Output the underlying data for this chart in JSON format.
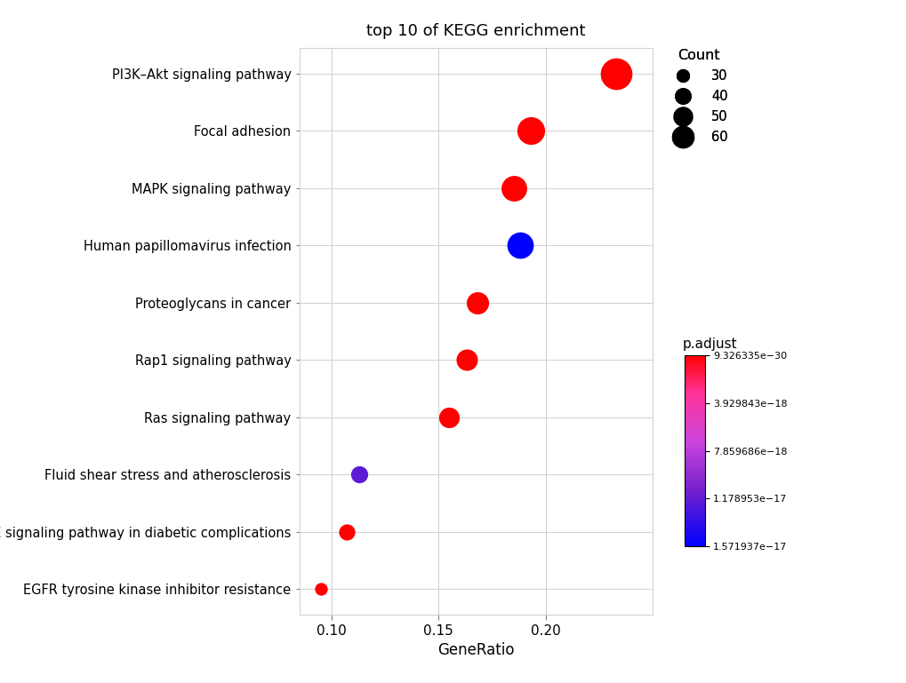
{
  "title": "top 10 of KEGG enrichment",
  "xlabel": "GeneRatio",
  "pathways": [
    "PI3K–Akt signaling pathway",
    "Focal adhesion",
    "MAPK signaling pathway",
    "Human papillomavirus infection",
    "Proteoglycans in cancer",
    "Rap1 signaling pathway",
    "Ras signaling pathway",
    "Fluid shear stress and atherosclerosis",
    "AGE–RAGE signaling pathway in diabetic complications",
    "EGFR tyrosine kinase inhibitor resistance"
  ],
  "gene_ratio": [
    0.233,
    0.193,
    0.185,
    0.188,
    0.168,
    0.163,
    0.155,
    0.113,
    0.107,
    0.095
  ],
  "counts": [
    65,
    55,
    50,
    52,
    42,
    40,
    38,
    30,
    28,
    20
  ],
  "p_adjust": [
    9.326335e-30,
    3.5e-29,
    2e-28,
    1.571937e-17,
    1.5e-28,
    8e-29,
    3e-28,
    1.2e-17,
    5e-29,
    3e-29
  ],
  "p_adjust_min": 9.326335e-30,
  "p_adjust_max": 1.571937e-17,
  "colorbar_ticks": [
    9.326335e-30,
    3.929843e-18,
    7.859686e-18,
    1.178953e-17,
    1.571937e-17
  ],
  "colorbar_ticklabels": [
    "9.326335e−30",
    "3.929843e−18",
    "7.859686e−18",
    "1.178953e−17",
    "1.571937e−17"
  ],
  "count_legend_values": [
    30,
    40,
    50,
    60
  ],
  "xlim": [
    0.085,
    0.25
  ],
  "xticks": [
    0.1,
    0.15,
    0.2
  ],
  "cmap_colors": [
    [
      0.0,
      "red"
    ],
    [
      0.25,
      "#ff69b4"
    ],
    [
      0.5,
      "#cc44cc"
    ],
    [
      0.75,
      "#6633cc"
    ],
    [
      1.0,
      "blue"
    ]
  ]
}
